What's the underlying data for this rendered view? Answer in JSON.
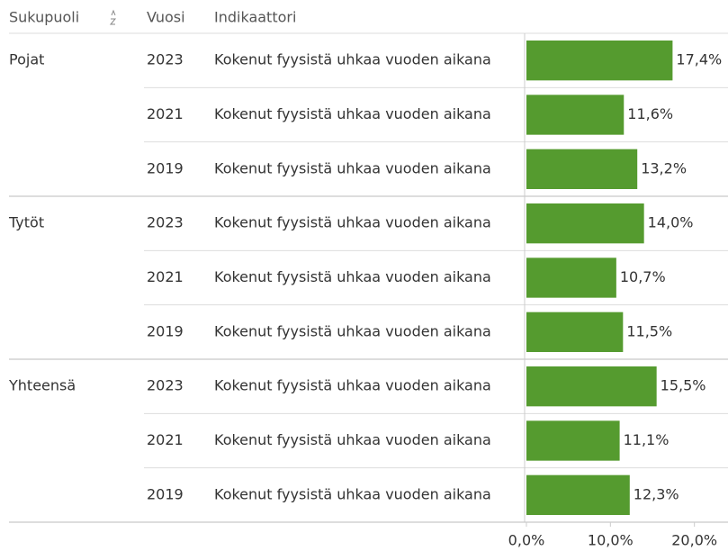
{
  "chart_data": {
    "type": "bar",
    "column_headers": [
      "Sukupuoli",
      "Vuosi",
      "Indikaattori"
    ],
    "groups": [
      {
        "name": "Pojat",
        "years": [
          "2023",
          "2021",
          "2019"
        ],
        "indicators": [
          "Kokenut fyysistä uhkaa vuoden aikana",
          "Kokenut fyysistä uhkaa vuoden aikana",
          "Kokenut fyysistä uhkaa vuoden aikana"
        ],
        "values": [
          17.4,
          11.6,
          13.2
        ],
        "value_labels": [
          "17,4%",
          "11,6%",
          "13,2%"
        ]
      },
      {
        "name": "Tytöt",
        "years": [
          "2023",
          "2021",
          "2019"
        ],
        "indicators": [
          "Kokenut fyysistä uhkaa vuoden aikana",
          "Kokenut fyysistä uhkaa vuoden aikana",
          "Kokenut fyysistä uhkaa vuoden aikana"
        ],
        "values": [
          14.0,
          10.7,
          11.5
        ],
        "value_labels": [
          "14,0%",
          "10,7%",
          "11,5%"
        ]
      },
      {
        "name": "Yhteensä",
        "years": [
          "2023",
          "2021",
          "2019"
        ],
        "indicators": [
          "Kokenut fyysistä uhkaa vuoden aikana",
          "Kokenut fyysistä uhkaa vuoden aikana",
          "Kokenut fyysistä uhkaa vuoden aikana"
        ],
        "values": [
          15.5,
          11.1,
          12.3
        ],
        "value_labels": [
          "15,5%",
          "11,1%",
          "12,3%"
        ]
      }
    ],
    "color": "#559b2f",
    "xlim": [
      0,
      24
    ],
    "xticks": [
      {
        "value": 0,
        "label": "0,0%"
      },
      {
        "value": 10,
        "label": "10,0%"
      },
      {
        "value": 20,
        "label": "20,0%"
      }
    ]
  }
}
